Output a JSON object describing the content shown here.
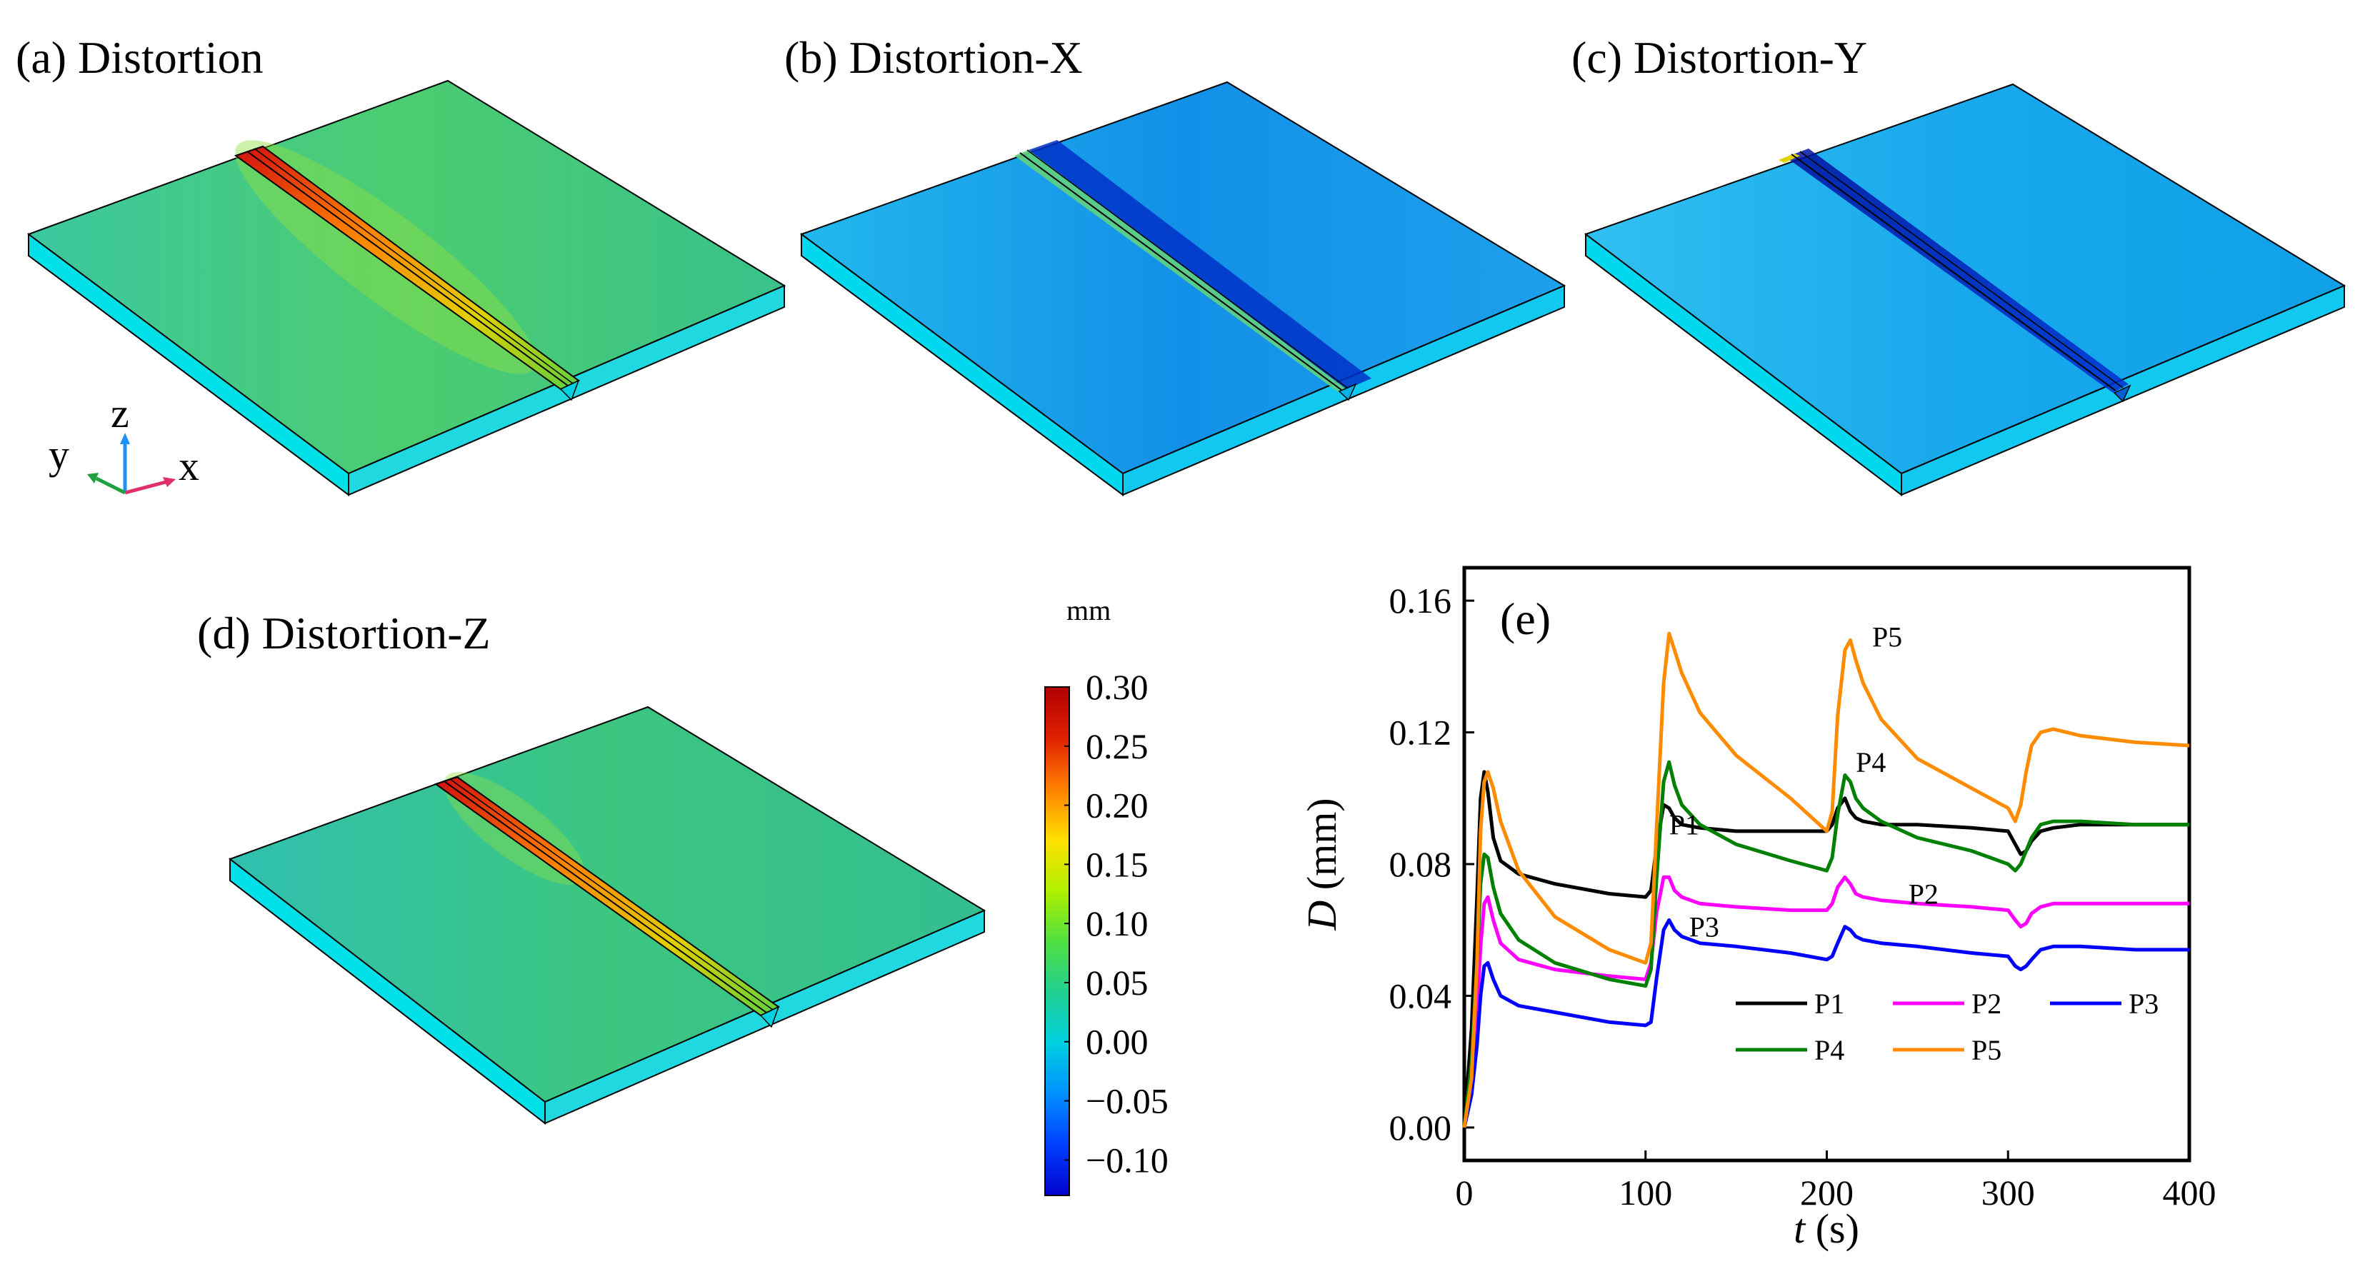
{
  "panels": [
    {
      "id": "a",
      "title": "(a) Distortion"
    },
    {
      "id": "b",
      "title": "(b) Distortion-X"
    },
    {
      "id": "c",
      "title": "(c) Distortion-Y"
    },
    {
      "id": "d",
      "title": "(d) Distortion-Z"
    }
  ],
  "triad": {
    "x": "x",
    "y": "y",
    "z": "z"
  },
  "colorbar": {
    "unit": "mm",
    "ticks": [
      "0.30",
      "0.25",
      "0.20",
      "0.15",
      "0.10",
      "0.05",
      "0.00",
      "−0.05",
      "−0.10"
    ],
    "range": [
      -0.13,
      0.3
    ],
    "colors": [
      "#0000cc",
      "#0040ff",
      "#0090ff",
      "#00d0e0",
      "#20d090",
      "#50e040",
      "#b0f000",
      "#ffe000",
      "#ff8000",
      "#e02000",
      "#b00000"
    ]
  },
  "colors": {
    "P1": "#000000",
    "P2": "#ff00ff",
    "P3": "#0000ff",
    "P4": "#008000",
    "P5": "#ff8c00",
    "plate_face_a": "#40c890",
    "plate_face_b": "#1aa8e8",
    "plate_face_c": "#20b8f0",
    "plate_face_d": "#38c4a0",
    "plate_side": "#00e0e8"
  },
  "chart_data": {
    "type": "line",
    "panel_label": "(e)",
    "xlabel": "t (s)",
    "ylabel": "D (mm)",
    "xlim": [
      0,
      400
    ],
    "ylim": [
      -0.01,
      0.17
    ],
    "xticks": [
      "0",
      "100",
      "200",
      "300",
      "400"
    ],
    "yticks": [
      "0.00",
      "0.04",
      "0.08",
      "0.12",
      "0.16"
    ],
    "legend": {
      "placement": "bottom-right",
      "rows": [
        [
          "P1",
          "P2",
          "P3"
        ],
        [
          "P4",
          "P5"
        ]
      ]
    },
    "annotations": [
      {
        "text": "P5",
        "x": 225,
        "y": 0.146
      },
      {
        "text": "P4",
        "x": 216,
        "y": 0.108
      },
      {
        "text": "P1",
        "x": 113,
        "y": 0.089
      },
      {
        "text": "P2",
        "x": 245,
        "y": 0.068
      },
      {
        "text": "P3",
        "x": 124,
        "y": 0.058
      }
    ],
    "series": [
      {
        "name": "P1",
        "x": [
          0,
          4,
          7,
          9,
          11,
          13,
          16,
          20,
          30,
          50,
          80,
          100,
          103,
          106,
          110,
          113,
          116,
          120,
          130,
          150,
          180,
          200,
          203,
          206,
          210,
          213,
          216,
          220,
          230,
          250,
          280,
          300,
          304,
          307,
          310,
          313,
          318,
          325,
          340,
          370,
          400
        ],
        "y": [
          0,
          0.03,
          0.07,
          0.1,
          0.108,
          0.102,
          0.088,
          0.081,
          0.077,
          0.074,
          0.071,
          0.07,
          0.072,
          0.085,
          0.098,
          0.097,
          0.094,
          0.092,
          0.091,
          0.09,
          0.09,
          0.09,
          0.092,
          0.097,
          0.1,
          0.096,
          0.094,
          0.093,
          0.092,
          0.092,
          0.091,
          0.09,
          0.086,
          0.083,
          0.084,
          0.087,
          0.09,
          0.091,
          0.092,
          0.092,
          0.092
        ]
      },
      {
        "name": "P2",
        "x": [
          0,
          4,
          7,
          9,
          11,
          13,
          16,
          20,
          30,
          50,
          80,
          100,
          103,
          106,
          110,
          113,
          116,
          120,
          130,
          150,
          180,
          200,
          203,
          206,
          210,
          213,
          216,
          220,
          230,
          250,
          280,
          300,
          304,
          307,
          310,
          313,
          318,
          325,
          340,
          370,
          400
        ],
        "y": [
          0,
          0.015,
          0.035,
          0.055,
          0.068,
          0.07,
          0.063,
          0.056,
          0.051,
          0.048,
          0.046,
          0.045,
          0.05,
          0.065,
          0.076,
          0.076,
          0.072,
          0.07,
          0.068,
          0.067,
          0.066,
          0.066,
          0.068,
          0.073,
          0.076,
          0.074,
          0.071,
          0.07,
          0.069,
          0.068,
          0.067,
          0.066,
          0.063,
          0.061,
          0.062,
          0.065,
          0.067,
          0.068,
          0.068,
          0.068,
          0.068
        ]
      },
      {
        "name": "P3",
        "x": [
          0,
          4,
          7,
          9,
          11,
          13,
          16,
          20,
          30,
          50,
          80,
          100,
          103,
          106,
          110,
          113,
          116,
          120,
          130,
          150,
          180,
          200,
          203,
          206,
          210,
          213,
          216,
          220,
          230,
          250,
          280,
          300,
          304,
          307,
          310,
          313,
          318,
          325,
          340,
          370,
          400
        ],
        "y": [
          0,
          0.01,
          0.025,
          0.04,
          0.049,
          0.05,
          0.045,
          0.04,
          0.037,
          0.035,
          0.032,
          0.031,
          0.032,
          0.045,
          0.06,
          0.063,
          0.06,
          0.058,
          0.056,
          0.055,
          0.053,
          0.051,
          0.052,
          0.056,
          0.061,
          0.06,
          0.058,
          0.057,
          0.056,
          0.055,
          0.053,
          0.052,
          0.049,
          0.048,
          0.049,
          0.051,
          0.054,
          0.055,
          0.055,
          0.054,
          0.054
        ]
      },
      {
        "name": "P4",
        "x": [
          0,
          4,
          7,
          9,
          11,
          13,
          16,
          20,
          30,
          50,
          80,
          100,
          103,
          106,
          110,
          113,
          116,
          120,
          130,
          150,
          180,
          200,
          203,
          206,
          210,
          213,
          216,
          220,
          230,
          250,
          280,
          300,
          304,
          307,
          310,
          313,
          318,
          325,
          340,
          370,
          400
        ],
        "y": [
          0,
          0.02,
          0.05,
          0.074,
          0.083,
          0.082,
          0.073,
          0.065,
          0.057,
          0.05,
          0.045,
          0.043,
          0.048,
          0.075,
          0.105,
          0.111,
          0.104,
          0.098,
          0.092,
          0.086,
          0.081,
          0.078,
          0.082,
          0.095,
          0.107,
          0.105,
          0.1,
          0.097,
          0.093,
          0.088,
          0.084,
          0.08,
          0.078,
          0.08,
          0.084,
          0.088,
          0.092,
          0.093,
          0.093,
          0.092,
          0.092
        ]
      },
      {
        "name": "P5",
        "x": [
          0,
          4,
          7,
          9,
          11,
          13,
          16,
          20,
          30,
          50,
          80,
          100,
          103,
          106,
          110,
          113,
          116,
          120,
          130,
          150,
          180,
          200,
          203,
          206,
          210,
          213,
          216,
          220,
          230,
          250,
          280,
          300,
          304,
          307,
          310,
          313,
          318,
          325,
          340,
          370,
          400
        ],
        "y": [
          0,
          0.015,
          0.05,
          0.09,
          0.105,
          0.108,
          0.103,
          0.093,
          0.078,
          0.064,
          0.054,
          0.05,
          0.056,
          0.09,
          0.135,
          0.15,
          0.145,
          0.138,
          0.126,
          0.113,
          0.1,
          0.09,
          0.096,
          0.125,
          0.145,
          0.148,
          0.142,
          0.135,
          0.124,
          0.112,
          0.103,
          0.097,
          0.093,
          0.098,
          0.108,
          0.116,
          0.12,
          0.121,
          0.119,
          0.117,
          0.116
        ]
      }
    ]
  }
}
